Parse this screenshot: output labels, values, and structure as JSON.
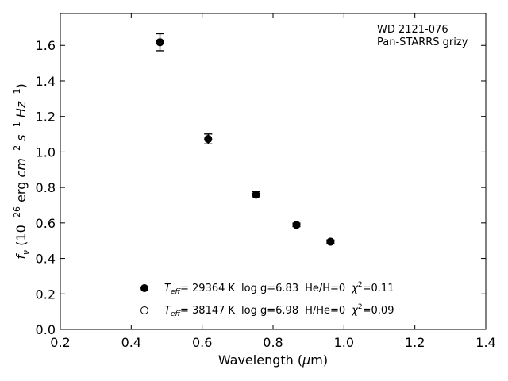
{
  "chart_data": {
    "type": "scatter",
    "xlim": [
      0.2,
      1.4
    ],
    "ylim": [
      0.0,
      1.78
    ],
    "xticks": [
      0.2,
      0.4,
      0.6,
      0.8,
      1.0,
      1.2,
      1.4
    ],
    "yticks": [
      0.0,
      0.2,
      0.4,
      0.6,
      0.8,
      1.0,
      1.2,
      1.4,
      1.6
    ],
    "xtick_labels": [
      "0.2",
      "0.4",
      "0.6",
      "0.8",
      "1.0",
      "1.2",
      "1.4"
    ],
    "ytick_labels": [
      "0.0",
      "0.2",
      "0.4",
      "0.6",
      "0.8",
      "1.0",
      "1.2",
      "1.4",
      "1.6"
    ],
    "grid": false,
    "ticks_direction": "in",
    "xlabel_text": "Wavelength (",
    "xlabel_mu": "μ",
    "xlabel_unit": "m)",
    "ylabel_f": "f",
    "ylabel_nu": "ν",
    "ylabel_a": " (10",
    "ylabel_exp1": "−26",
    "ylabel_b": " erg ",
    "ylabel_cm": "cm",
    "ylabel_exp2": "−2",
    "ylabel_s": " s",
    "ylabel_exp3": "−1",
    "ylabel_hz": " Hz",
    "ylabel_exp4": "−1",
    "ylabel_close": ")",
    "annotation_lines": [
      "WD 2121-076",
      "Pan-STARRS grizy"
    ],
    "annotation_position": "top-right",
    "legend_position": "lower-center",
    "series": [
      {
        "marker": "filled-circle",
        "color": "#000000",
        "x": [
          0.481,
          0.617,
          0.752,
          0.866,
          0.962
        ],
        "y": [
          1.618,
          1.073,
          0.759,
          0.589,
          0.494
        ],
        "yerr": [
          0.048,
          0.028,
          0.018,
          0.01,
          0.01
        ]
      },
      {
        "marker": "open-circle",
        "color": "#000000",
        "x": [
          0.481,
          0.617,
          0.752,
          0.866,
          0.962
        ],
        "y": [
          1.618,
          1.073,
          0.759,
          0.589,
          0.494
        ],
        "yerr": [
          0.048,
          0.028,
          0.018,
          0.01,
          0.01
        ]
      }
    ],
    "legend": [
      {
        "marker": "filled-circle",
        "t": "T",
        "t_sub": "eff",
        "temp": "= 29364 K",
        "logg": "log g=6.83",
        "comp": "He/H=0",
        "chi": "χ",
        "chi_exp": "2",
        "chi_val": "=0.11"
      },
      {
        "marker": "open-circle",
        "t": "T",
        "t_sub": "eff",
        "temp": "= 38147 K",
        "logg": "log g=6.98",
        "comp": "H/He=0",
        "chi": "χ",
        "chi_exp": "2",
        "chi_val": "=0.09"
      }
    ]
  }
}
